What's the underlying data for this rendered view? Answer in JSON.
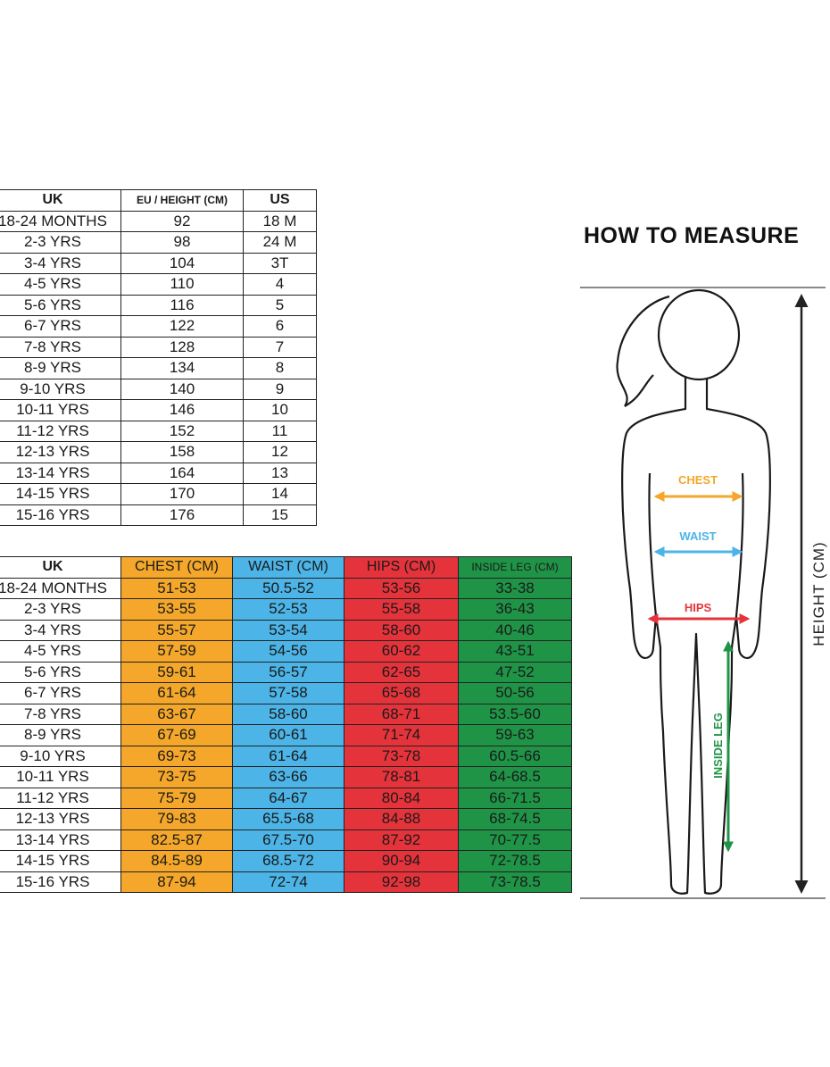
{
  "size_table": {
    "headers": {
      "uk": "UK",
      "eu_height": "EU / HEIGHT (CM)",
      "us": "US"
    },
    "rows": [
      {
        "uk": "18-24 MONTHS",
        "eu": "92",
        "us": "18 M"
      },
      {
        "uk": "2-3 YRS",
        "eu": "98",
        "us": "24 M"
      },
      {
        "uk": "3-4 YRS",
        "eu": "104",
        "us": "3T"
      },
      {
        "uk": "4-5 YRS",
        "eu": "110",
        "us": "4"
      },
      {
        "uk": "5-6 YRS",
        "eu": "116",
        "us": "5"
      },
      {
        "uk": "6-7 YRS",
        "eu": "122",
        "us": "6"
      },
      {
        "uk": "7-8 YRS",
        "eu": "128",
        "us": "7"
      },
      {
        "uk": "8-9 YRS",
        "eu": "134",
        "us": "8"
      },
      {
        "uk": "9-10 YRS",
        "eu": "140",
        "us": "9"
      },
      {
        "uk": "10-11 YRS",
        "eu": "146",
        "us": "10"
      },
      {
        "uk": "11-12 YRS",
        "eu": "152",
        "us": "11"
      },
      {
        "uk": "12-13 YRS",
        "eu": "158",
        "us": "12"
      },
      {
        "uk": "13-14 YRS",
        "eu": "164",
        "us": "13"
      },
      {
        "uk": "14-15 YRS",
        "eu": "170",
        "us": "14"
      },
      {
        "uk": "15-16 YRS",
        "eu": "176",
        "us": "15"
      }
    ]
  },
  "measure_table": {
    "headers": {
      "uk": "UK",
      "chest": "CHEST (CM)",
      "waist": "WAIST (CM)",
      "hips": "HIPS (CM)",
      "inside_leg": "INSIDE LEG (CM)"
    },
    "rows": [
      {
        "uk": "18-24 MONTHS",
        "chest": "51-53",
        "waist": "50.5-52",
        "hips": "53-56",
        "leg": "33-38"
      },
      {
        "uk": "2-3 YRS",
        "chest": "53-55",
        "waist": "52-53",
        "hips": "55-58",
        "leg": "36-43"
      },
      {
        "uk": "3-4 YRS",
        "chest": "55-57",
        "waist": "53-54",
        "hips": "58-60",
        "leg": "40-46"
      },
      {
        "uk": "4-5 YRS",
        "chest": "57-59",
        "waist": "54-56",
        "hips": "60-62",
        "leg": "43-51"
      },
      {
        "uk": "5-6 YRS",
        "chest": "59-61",
        "waist": "56-57",
        "hips": "62-65",
        "leg": "47-52"
      },
      {
        "uk": "6-7 YRS",
        "chest": "61-64",
        "waist": "57-58",
        "hips": "65-68",
        "leg": "50-56"
      },
      {
        "uk": "7-8 YRS",
        "chest": "63-67",
        "waist": "58-60",
        "hips": "68-71",
        "leg": "53.5-60"
      },
      {
        "uk": "8-9 YRS",
        "chest": "67-69",
        "waist": "60-61",
        "hips": "71-74",
        "leg": "59-63"
      },
      {
        "uk": "9-10 YRS",
        "chest": "69-73",
        "waist": "61-64",
        "hips": "73-78",
        "leg": "60.5-66"
      },
      {
        "uk": "10-11 YRS",
        "chest": "73-75",
        "waist": "63-66",
        "hips": "78-81",
        "leg": "64-68.5"
      },
      {
        "uk": "11-12 YRS",
        "chest": "75-79",
        "waist": "64-67",
        "hips": "80-84",
        "leg": "66-71.5"
      },
      {
        "uk": "12-13 YRS",
        "chest": "79-83",
        "waist": "65.5-68",
        "hips": "84-88",
        "leg": "68-74.5"
      },
      {
        "uk": "13-14 YRS",
        "chest": "82.5-87",
        "waist": "67.5-70",
        "hips": "87-92",
        "leg": "70-77.5"
      },
      {
        "uk": "14-15 YRS",
        "chest": "84.5-89",
        "waist": "68.5-72",
        "hips": "90-94",
        "leg": "72-78.5"
      },
      {
        "uk": "15-16 YRS",
        "chest": "87-94",
        "waist": "72-74",
        "hips": "92-98",
        "leg": "73-78.5"
      }
    ]
  },
  "how_to_measure": {
    "title": "HOW TO MEASURE",
    "labels": {
      "chest": "CHEST",
      "waist": "WAIST",
      "hips": "HIPS",
      "inside_leg": "INSIDE LEG",
      "height": "HEIGHT (CM)"
    }
  },
  "colors": {
    "chest": "#f4a72a",
    "waist": "#4cb4e7",
    "hips": "#e5333b",
    "inside_leg": "#1f9447"
  },
  "icons": [
    "child-silhouette-icon",
    "height-arrow-icon",
    "chest-arrow-icon",
    "waist-arrow-icon",
    "hips-arrow-icon",
    "inside-leg-arrow-icon"
  ]
}
